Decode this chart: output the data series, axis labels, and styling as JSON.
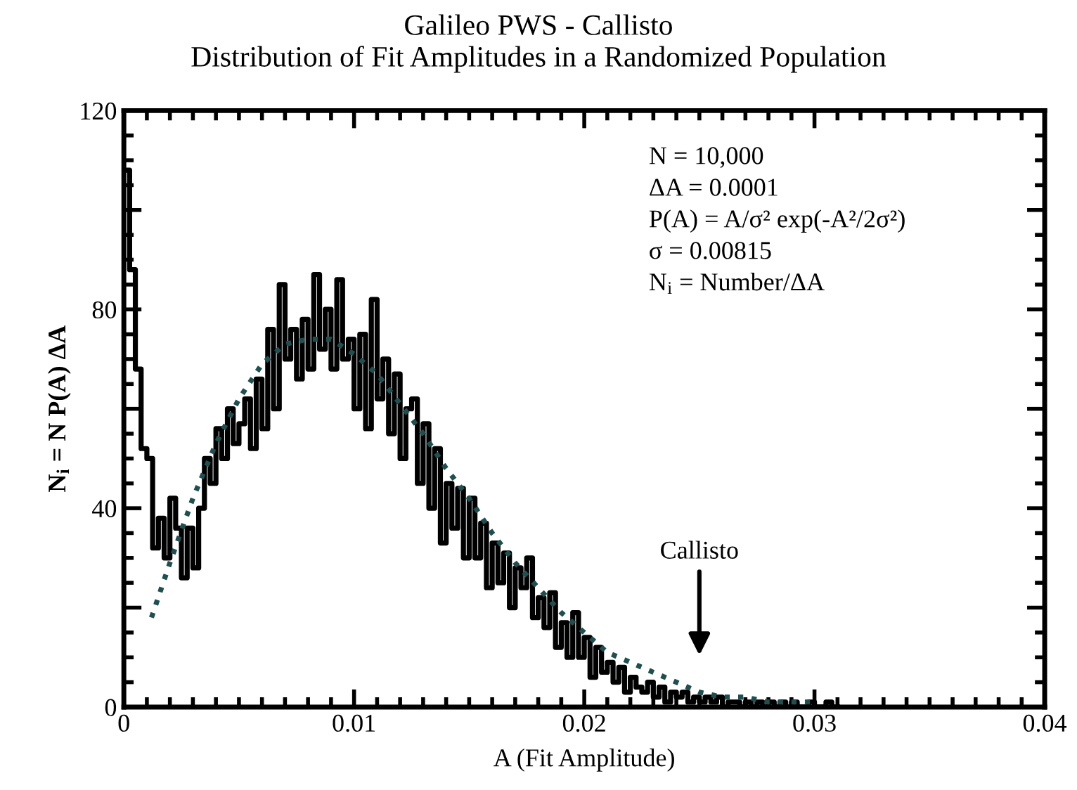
{
  "chart_data": {
    "type": "step",
    "title": "Galileo PWS - Callisto",
    "subtitle": "Distribution of Fit Amplitudes in a Randomized Population",
    "xlabel": "A (Fit Amplitude)",
    "ylabel": "N$_{i}$ = N P(A) ΔA",
    "xlim": [
      0,
      0.04
    ],
    "xticks": [
      0,
      0.01,
      0.02,
      0.03,
      0.04
    ],
    "ylim": [
      0,
      120
    ],
    "yticks": [
      0,
      {
        "value": 20,
        "label": null
      },
      40,
      {
        "value": 60,
        "label": null
      },
      80,
      {
        "value": 100,
        "label": null
      },
      120
    ],
    "grid": false,
    "legend": false,
    "annotations": [
      "N = 10,000",
      "ΔA = 0.0001",
      "P(A) = A/σ² exp(-A²/2σ²)",
      "σ = 0.00815",
      "N$_{i}$ = Number/ΔA",
      "Callisto"
    ],
    "series": [
      {
        "color": "#000000",
        "line_style": "solid",
        "x": [
          0,
          0.00025,
          0.0005,
          0.00075,
          0.001,
          0.00125,
          0.0015,
          0.00175,
          0.002,
          0.00225,
          0.0025,
          0.00275,
          0.003,
          0.00325,
          0.0035,
          0.00375,
          0.004,
          0.00425,
          0.0045,
          0.00475,
          0.005,
          0.00525,
          0.0055,
          0.00575,
          0.006,
          0.00625,
          0.0065,
          0.00675,
          0.007,
          0.00725,
          0.0075,
          0.00775,
          0.008,
          0.00825,
          0.0085,
          0.00875,
          0.009,
          0.00925,
          0.0095,
          0.00975,
          0.01,
          0.01025,
          0.0105,
          0.01075,
          0.011,
          0.01125,
          0.0115,
          0.01175,
          0.012,
          0.01225,
          0.0125,
          0.01275,
          0.013,
          0.01325,
          0.0135,
          0.01375,
          0.014,
          0.01425,
          0.0145,
          0.01475,
          0.015,
          0.01525,
          0.0155,
          0.01575,
          0.016,
          0.01625,
          0.0165,
          0.01675,
          0.017,
          0.01725,
          0.0175,
          0.01775,
          0.018,
          0.01825,
          0.0185,
          0.01875,
          0.019,
          0.01925,
          0.0195,
          0.01975,
          0.02,
          0.02025,
          0.0205,
          0.02075,
          0.021,
          0.02125,
          0.0215,
          0.02175,
          0.022,
          0.02225,
          0.0225,
          0.02275,
          0.023,
          0.02325,
          0.0235,
          0.02375,
          0.024,
          0.02425,
          0.0245,
          0.02475,
          0.025,
          0.02525,
          0.0255,
          0.02575,
          0.026,
          0.02625,
          0.0265,
          0.02675,
          0.027,
          0.02725,
          0.0275,
          0.02775,
          0.028,
          0.02825,
          0.0285,
          0.02875,
          0.029,
          0.02925,
          0.0295,
          0.02975,
          0.03,
          0.03025,
          0.0305,
          0.03075,
          0.031
        ],
        "values": [
          108,
          88,
          68,
          52,
          50,
          32,
          38,
          30,
          42,
          36,
          26,
          36,
          28,
          40,
          50,
          45,
          56,
          50,
          60,
          53,
          57,
          62,
          52,
          66,
          56,
          76,
          60,
          85,
          70,
          76,
          66,
          78,
          68,
          87,
          72,
          80,
          68,
          86,
          70,
          74,
          60,
          75,
          56,
          82,
          62,
          70,
          55,
          67,
          50,
          60,
          62,
          45,
          57,
          40,
          52,
          33,
          45,
          36,
          44,
          30,
          42,
          30,
          37,
          24,
          33,
          25,
          31,
          20,
          28,
          24,
          30,
          18,
          22,
          16,
          23,
          12,
          17,
          10,
          19,
          10,
          14,
          6,
          12,
          7,
          9,
          5,
          8,
          3,
          6,
          4,
          3,
          5,
          2,
          4,
          1,
          3,
          2,
          3,
          1,
          2,
          1,
          2,
          1,
          2,
          0,
          1,
          1,
          0,
          1,
          0,
          1,
          0,
          1,
          0,
          1,
          0,
          1,
          0,
          0,
          1,
          0,
          0,
          1,
          0,
          0
        ]
      },
      {
        "type": "line",
        "color": "#1f4f4f",
        "line_style": "dotted",
        "x": [
          0.0012,
          0.002,
          0.003,
          0.004,
          0.005,
          0.006,
          0.007,
          0.008,
          0.009,
          0.01,
          0.011,
          0.012,
          0.013,
          0.014,
          0.015,
          0.016,
          0.017,
          0.018,
          0.019,
          0.02,
          0.021,
          0.022,
          0.023,
          0.024,
          0.025,
          0.026,
          0.027,
          0.028,
          0.029,
          0.03
        ],
        "values": [
          18,
          29,
          42,
          53,
          62,
          69,
          73,
          74,
          74,
          71,
          67,
          61,
          55,
          48,
          42,
          35,
          29,
          24,
          19,
          15,
          11,
          9,
          7,
          5,
          3,
          2,
          2,
          1,
          1,
          1
        ]
      }
    ]
  }
}
